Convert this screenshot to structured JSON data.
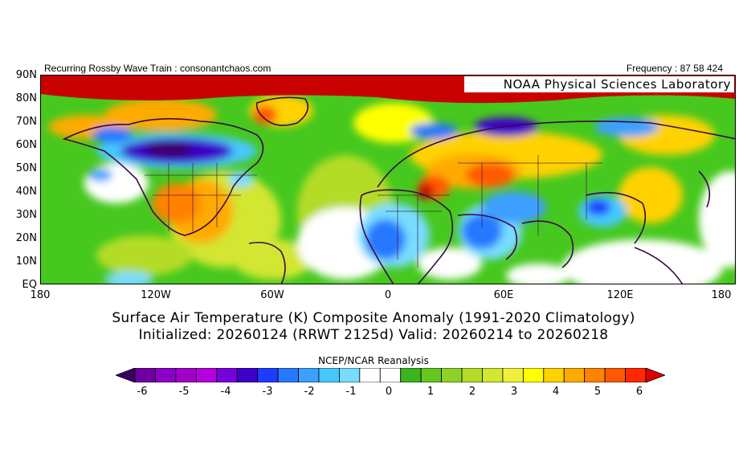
{
  "header": {
    "left": "Recurring Rossby Wave Train : consonantchaos.com",
    "right": "Frequency : 87 58 424",
    "lab": "NOAA Physical Sciences Laboratory"
  },
  "axes": {
    "lat_labels": [
      "90N",
      "80N",
      "70N",
      "60N",
      "50N",
      "40N",
      "30N",
      "20N",
      "10N",
      "EQ"
    ],
    "lon_labels": [
      "180",
      "120W",
      "60W",
      "0",
      "60E",
      "120E",
      "180"
    ]
  },
  "title": {
    "line1": "Surface Air Temperature (K) Composite Anomaly (1991-2020 Climatology)",
    "line2": "Initialized: 20260124 (RRWT 2125d) Valid: 20260214 to 20260218"
  },
  "source": "NCEP/NCAR Reanalysis",
  "colorbar": {
    "tick_labels": [
      "-6",
      "-5",
      "-4",
      "-3",
      "-2",
      "-1",
      "0",
      "1",
      "2",
      "3",
      "4",
      "5",
      "6"
    ],
    "colors": [
      "#3c0064",
      "#6e00a0",
      "#8c00c8",
      "#a000c8",
      "#b400dc",
      "#7800dc",
      "#3c00c8",
      "#1e3cff",
      "#2878ff",
      "#3ca0ff",
      "#46c8ff",
      "#78dcff",
      "#ffffff",
      "#ffffff",
      "#3cb41e",
      "#64c81e",
      "#8cd228",
      "#b4dc28",
      "#d2e632",
      "#f0f03c",
      "#ffff00",
      "#ffd200",
      "#ffaa00",
      "#ff8200",
      "#ff5a00",
      "#ff2800",
      "#dc0000"
    ]
  },
  "map_colors": {
    "land_outline": "#3c0a46",
    "warm_strong": "#c80000",
    "cold_strong": "#3c0064"
  }
}
